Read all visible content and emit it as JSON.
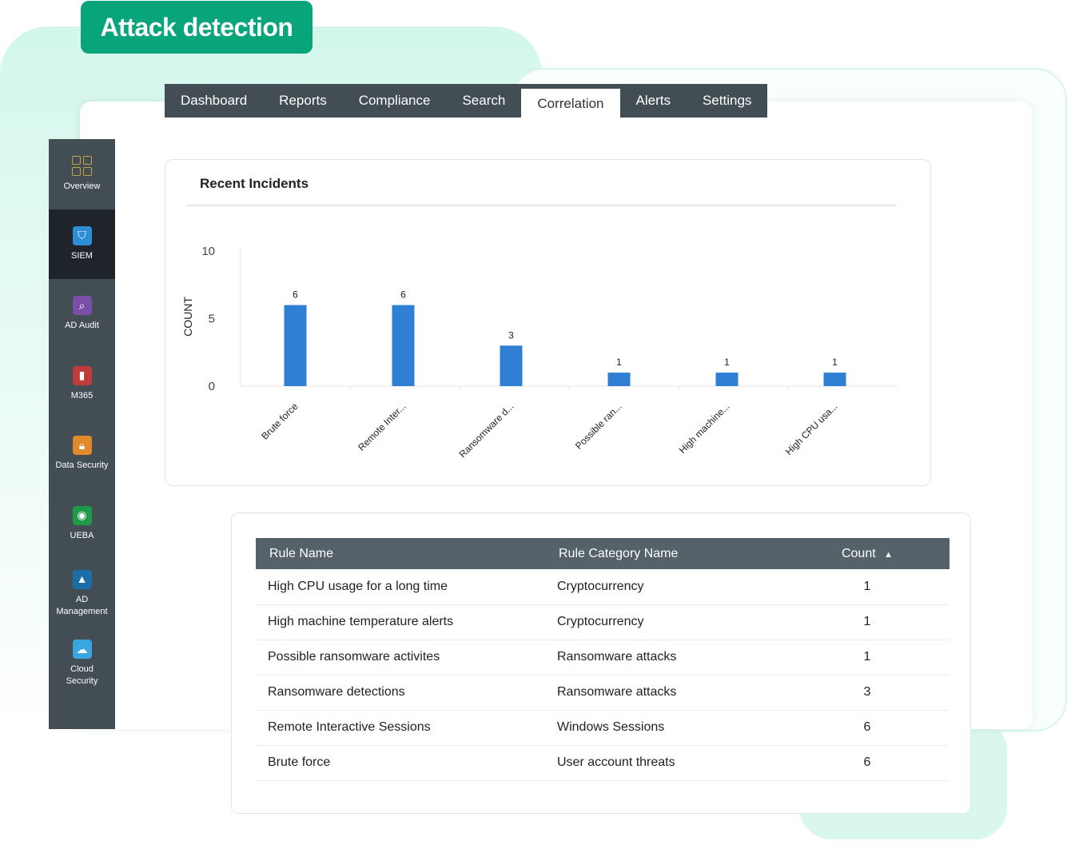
{
  "badge": "Attack detection",
  "nav": {
    "tabs": [
      "Dashboard",
      "Reports",
      "Compliance",
      "Search",
      "Correlation",
      "Alerts",
      "Settings"
    ],
    "active": "Correlation"
  },
  "sidebar": {
    "items": [
      {
        "label": "Overview",
        "icon": "grid-icon",
        "color": "#c9a043"
      },
      {
        "label": "SIEM",
        "icon": "shield-icon",
        "color": "#2c8fd6"
      },
      {
        "label": "AD Audit",
        "icon": "magnifier-icon",
        "color": "#7b4fa8"
      },
      {
        "label": "M365",
        "icon": "office-icon",
        "color": "#c23b3b"
      },
      {
        "label": "Data Security",
        "icon": "folder-lock-icon",
        "color": "#e08a2c"
      },
      {
        "label": "UEBA",
        "icon": "eye-icon",
        "color": "#1f9a4a"
      },
      {
        "label": "AD Management",
        "icon": "triangles-icon",
        "color": "#1c6ea8"
      },
      {
        "label": "Cloud Security",
        "icon": "cloud-lock-icon",
        "color": "#3aa6e0"
      }
    ],
    "active": "SIEM"
  },
  "card": {
    "title": "Recent Incidents"
  },
  "chart_data": {
    "type": "bar",
    "categories": [
      "Brute force",
      "Remote Inter...",
      "Ransomware d...",
      "Possible ran...",
      "High machine...",
      "High CPU usa..."
    ],
    "values": [
      6,
      6,
      3,
      1,
      1,
      1
    ],
    "ylabel": "COUNT",
    "ylim": [
      0,
      10
    ],
    "yticks": [
      0,
      5,
      10
    ],
    "bar_color": "#2f80d4",
    "data_labels": true
  },
  "table": {
    "headers": [
      "Rule Name",
      "Rule Category Name",
      "Count"
    ],
    "sort_icon": "sort-ascending-icon",
    "rows": [
      [
        "High CPU usage for a long time",
        "Cryptocurrency",
        "1"
      ],
      [
        "High machine temperature alerts",
        "Cryptocurrency",
        "1"
      ],
      [
        "Possible ransomware activites",
        "Ransomware attacks",
        "1"
      ],
      [
        "Ransomware detections",
        "Ransomware attacks",
        "3"
      ],
      [
        "Remote Interactive Sessions",
        "Windows Sessions",
        "6"
      ],
      [
        "Brute force",
        "User account threats",
        "6"
      ]
    ]
  }
}
